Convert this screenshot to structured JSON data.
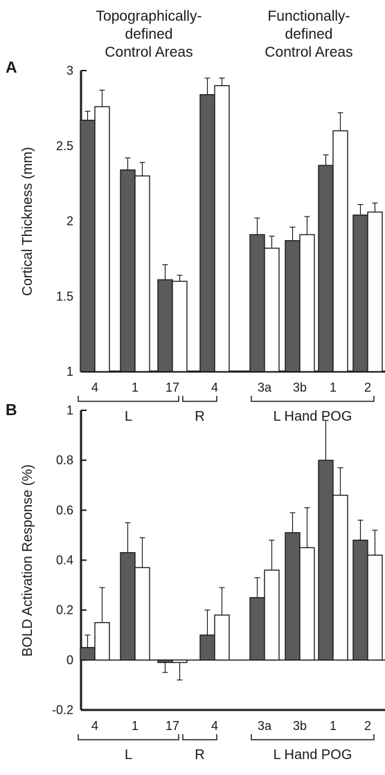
{
  "header": {
    "left": [
      "Topographically-",
      "defined",
      "Control Areas"
    ],
    "right": [
      "Functionally-",
      "defined",
      "Control Areas"
    ]
  },
  "colors": {
    "dark_bar": "#5b5b5b",
    "light_bar": "#ffffff",
    "axis": "#1a1a1a"
  },
  "chart_data": [
    {
      "panel": "A",
      "type": "bar",
      "ylabel": "Cortical Thickness (mm)",
      "ylim": [
        1,
        3
      ],
      "yticks": [
        "1",
        "1.5",
        "2",
        "2.5",
        "3"
      ],
      "categories": [
        "4",
        "1",
        "17",
        "4",
        "3a",
        "3b",
        "1",
        "2"
      ],
      "groups": [
        "L",
        "R",
        "L Hand POG"
      ],
      "series": [
        {
          "values": [
            2.67,
            2.34,
            1.61,
            2.84,
            1.91,
            1.87,
            2.37,
            2.04
          ],
          "errors": [
            0.06,
            0.08,
            0.1,
            0.11,
            0.11,
            0.09,
            0.07,
            0.07
          ]
        },
        {
          "values": [
            2.76,
            2.3,
            1.6,
            2.9,
            1.82,
            1.91,
            2.6,
            2.06
          ],
          "errors": [
            0.11,
            0.09,
            0.04,
            0.05,
            0.08,
            0.12,
            0.12,
            0.06
          ]
        }
      ]
    },
    {
      "panel": "B",
      "type": "bar",
      "ylabel": "BOLD Activation Response (%)",
      "ylim": [
        -0.2,
        1
      ],
      "yticks": [
        "-0.2",
        "0",
        "0.2",
        "0.4",
        "0.6",
        "0.8",
        "1"
      ],
      "categories": [
        "4",
        "1",
        "17",
        "4",
        "3a",
        "3b",
        "1",
        "2"
      ],
      "groups": [
        "L",
        "R",
        "L Hand POG"
      ],
      "series": [
        {
          "values": [
            0.05,
            0.43,
            -0.01,
            0.1,
            0.25,
            0.51,
            0.8,
            0.48
          ],
          "errors": [
            0.05,
            0.12,
            0.04,
            0.1,
            0.08,
            0.08,
            0.16,
            0.08
          ]
        },
        {
          "values": [
            0.15,
            0.37,
            -0.01,
            0.18,
            0.36,
            0.45,
            0.66,
            0.42
          ],
          "errors": [
            0.14,
            0.12,
            0.07,
            0.11,
            0.12,
            0.16,
            0.11,
            0.1
          ]
        }
      ]
    }
  ]
}
